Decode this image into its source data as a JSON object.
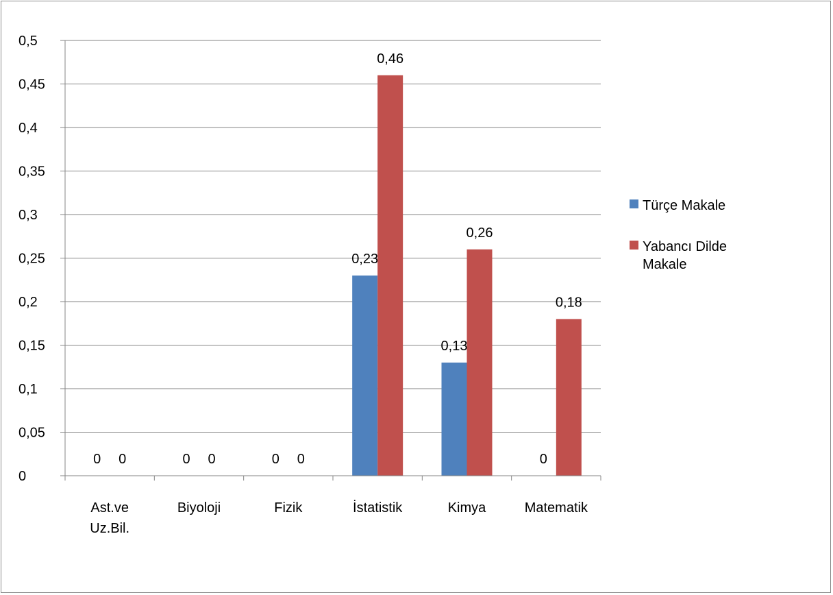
{
  "chart_data": {
    "type": "bar",
    "title": "",
    "xlabel": "",
    "ylabel": "",
    "ylim": [
      0,
      0.5
    ],
    "grid": true,
    "legend_position": "right",
    "categories": [
      [
        "Ast.ve",
        "Uz.Bil."
      ],
      [
        "Biyoloji"
      ],
      [
        "Fizik"
      ],
      [
        "İstatistik"
      ],
      [
        "Kimya"
      ],
      [
        "Matematik"
      ]
    ],
    "y_ticks": [
      "0",
      "0,05",
      "0,1",
      "0,15",
      "0,2",
      "0,25",
      "0,3",
      "0,35",
      "0,4",
      "0,45",
      "0,5"
    ],
    "y_tick_values": [
      0,
      0.05,
      0.1,
      0.15,
      0.2,
      0.25,
      0.3,
      0.35,
      0.4,
      0.45,
      0.5
    ],
    "series": [
      {
        "name": "Türçe Makale",
        "color": "#4F81BD",
        "values": [
          0,
          0,
          0,
          0.23,
          0.13,
          0
        ],
        "labels": [
          "0",
          "0",
          "0",
          "0,23",
          "0,13",
          "0"
        ]
      },
      {
        "name": "Yabancı Dilde Makale",
        "legend_lines": [
          "Yabancı Dilde",
          "Makale"
        ],
        "color": "#C0504D",
        "values": [
          0,
          0,
          0,
          0.46,
          0.26,
          0.18
        ],
        "labels": [
          "0",
          "0",
          "0",
          "0,46",
          "0,26",
          "0,18"
        ]
      }
    ]
  }
}
